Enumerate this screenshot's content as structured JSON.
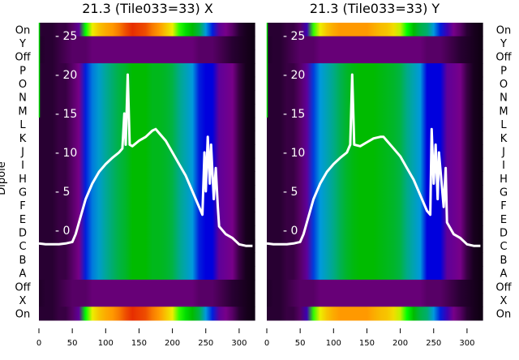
{
  "chart_data": [
    {
      "type": "heatmap",
      "title": "21.3 (Tile033=33) X",
      "ylabel": "Dipole",
      "row_labels": [
        "On",
        "Y",
        "Off",
        "P",
        "O",
        "N",
        "M",
        "L",
        "K",
        "J",
        "I",
        "H",
        "G",
        "F",
        "E",
        "D",
        "C",
        "B",
        "A",
        "Off",
        "X",
        "On"
      ],
      "row_types": [
        "on",
        "off",
        "off",
        "mid",
        "mid",
        "mid",
        "mid",
        "mid",
        "mid",
        "mid",
        "mid",
        "mid",
        "mid",
        "mid",
        "mid",
        "mid",
        "mid",
        "mid",
        "mid",
        "off",
        "off",
        "on"
      ],
      "x_ticks": [
        0,
        50,
        100,
        150,
        200,
        250,
        300
      ],
      "xlim": [
        0,
        324
      ],
      "y_ticks": [
        0,
        5,
        10,
        15,
        20,
        25
      ],
      "profile_x": [
        0,
        10,
        20,
        30,
        40,
        50,
        60,
        70,
        80,
        90,
        100,
        110,
        120,
        130,
        140,
        150,
        160,
        170,
        180,
        190,
        200,
        210,
        220,
        230,
        240,
        250,
        260,
        270,
        280,
        290,
        300,
        310,
        320
      ],
      "profiles": {
        "on": [
          0.05,
          0.05,
          0.05,
          0.06,
          0.06,
          0.08,
          0.12,
          0.6,
          0.7,
          0.75,
          0.78,
          0.8,
          0.82,
          0.85,
          0.87,
          0.86,
          0.85,
          0.82,
          0.8,
          0.75,
          0.7,
          0.62,
          0.55,
          0.5,
          0.45,
          0.3,
          0.22,
          0.12,
          0.1,
          0.08,
          0.05,
          0.03,
          0.02
        ],
        "mid": [
          0.05,
          0.05,
          0.05,
          0.06,
          0.06,
          0.08,
          0.1,
          0.22,
          0.28,
          0.32,
          0.38,
          0.42,
          0.45,
          0.47,
          0.5,
          0.5,
          0.5,
          0.48,
          0.48,
          0.47,
          0.45,
          0.4,
          0.35,
          0.3,
          0.22,
          0.2,
          0.2,
          0.12,
          0.11,
          0.1,
          0.06,
          0.03,
          0.02
        ],
        "off": [
          0.04,
          0.05,
          0.05,
          0.06,
          0.07,
          0.08,
          0.08,
          0.08,
          0.09,
          0.09,
          0.09,
          0.09,
          0.09,
          0.09,
          0.09,
          0.09,
          0.09,
          0.09,
          0.09,
          0.09,
          0.09,
          0.09,
          0.09,
          0.09,
          0.08,
          0.08,
          0.08,
          0.07,
          0.06,
          0.05,
          0.04,
          0.03,
          0.02
        ]
      },
      "line": {
        "x": [
          0,
          10,
          20,
          30,
          40,
          50,
          55,
          60,
          70,
          80,
          90,
          100,
          110,
          120,
          125,
          128,
          130,
          133,
          136,
          140,
          150,
          160,
          170,
          175,
          180,
          190,
          200,
          210,
          220,
          230,
          240,
          245,
          248,
          250,
          253,
          256,
          258,
          262,
          265,
          268,
          270,
          280,
          290,
          300,
          310,
          320
        ],
        "y": [
          -1.7,
          -1.8,
          -1.8,
          -1.8,
          -1.7,
          -1.5,
          -0.5,
          1,
          4,
          6,
          7.5,
          8.5,
          9.3,
          10,
          10.5,
          15,
          11,
          20,
          11,
          10.8,
          11.5,
          12,
          12.8,
          13,
          12.5,
          11.5,
          10,
          8.5,
          7,
          5,
          3,
          2,
          10,
          5,
          12,
          6,
          11,
          4,
          8,
          3,
          0.5,
          -0.5,
          -1,
          -1.8,
          -2,
          -2
        ]
      }
    },
    {
      "type": "heatmap",
      "title": "21.3 (Tile033=33) Y",
      "row_labels": [
        "On",
        "Y",
        "Off",
        "P",
        "O",
        "N",
        "M",
        "L",
        "K",
        "J",
        "I",
        "H",
        "G",
        "F",
        "E",
        "D",
        "C",
        "B",
        "A",
        "Off",
        "X",
        "On"
      ],
      "row_types": [
        "on",
        "off",
        "off",
        "mid",
        "mid",
        "mid",
        "mid",
        "mid",
        "mid",
        "mid",
        "mid",
        "mid",
        "mid",
        "mid",
        "mid",
        "mid",
        "mid",
        "mid",
        "mid",
        "off",
        "off",
        "on"
      ],
      "x_ticks": [
        0,
        50,
        100,
        150,
        200,
        250,
        300
      ],
      "xlim": [
        0,
        324
      ],
      "y_ticks": [
        0,
        5,
        10,
        15,
        20,
        25
      ],
      "profile_x": [
        0,
        10,
        20,
        30,
        40,
        50,
        60,
        70,
        80,
        90,
        100,
        110,
        120,
        130,
        140,
        150,
        160,
        170,
        180,
        190,
        200,
        210,
        220,
        230,
        240,
        250,
        260,
        270,
        280,
        290,
        300,
        310,
        320
      ],
      "profiles": {
        "on": [
          0.05,
          0.05,
          0.05,
          0.06,
          0.06,
          0.08,
          0.15,
          0.62,
          0.7,
          0.75,
          0.78,
          0.8,
          0.8,
          0.8,
          0.8,
          0.8,
          0.78,
          0.76,
          0.75,
          0.72,
          0.68,
          0.6,
          0.5,
          0.45,
          0.42,
          0.3,
          0.22,
          0.15,
          0.1,
          0.08,
          0.05,
          0.03,
          0.02
        ],
        "mid": [
          0.05,
          0.05,
          0.05,
          0.06,
          0.06,
          0.08,
          0.12,
          0.24,
          0.3,
          0.35,
          0.4,
          0.44,
          0.47,
          0.49,
          0.5,
          0.5,
          0.5,
          0.49,
          0.48,
          0.47,
          0.45,
          0.4,
          0.35,
          0.3,
          0.2,
          0.2,
          0.2,
          0.12,
          0.11,
          0.1,
          0.06,
          0.03,
          0.02
        ],
        "off": [
          0.04,
          0.05,
          0.05,
          0.06,
          0.07,
          0.08,
          0.08,
          0.08,
          0.09,
          0.09,
          0.09,
          0.09,
          0.09,
          0.09,
          0.09,
          0.09,
          0.09,
          0.09,
          0.09,
          0.09,
          0.09,
          0.09,
          0.09,
          0.09,
          0.08,
          0.08,
          0.08,
          0.07,
          0.06,
          0.05,
          0.04,
          0.03,
          0.02
        ]
      },
      "line": {
        "x": [
          0,
          10,
          20,
          30,
          40,
          50,
          55,
          60,
          70,
          80,
          90,
          100,
          110,
          120,
          125,
          128,
          131,
          140,
          150,
          160,
          170,
          175,
          180,
          190,
          200,
          210,
          220,
          230,
          240,
          245,
          247,
          250,
          253,
          256,
          258,
          262,
          265,
          268,
          270,
          280,
          290,
          300,
          310,
          320
        ],
        "y": [
          -1.7,
          -1.8,
          -1.8,
          -1.8,
          -1.7,
          -1.5,
          -0.5,
          1,
          4,
          6,
          7.5,
          8.5,
          9.3,
          10,
          11,
          20,
          11,
          10.8,
          11.3,
          11.8,
          12,
          12,
          11.5,
          10.5,
          9.5,
          8,
          6.5,
          4.5,
          2.5,
          2,
          13,
          6,
          11,
          4,
          10,
          6,
          3,
          8,
          1,
          -0.5,
          -1,
          -1.8,
          -2,
          -2
        ]
      }
    }
  ]
}
